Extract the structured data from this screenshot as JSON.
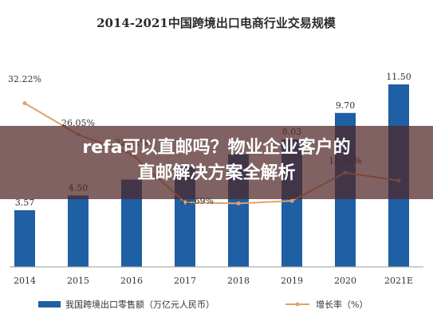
{
  "chart_data": {
    "type": "bar",
    "title": "2014-2021中国跨境出口电商行业交易规模",
    "categories": [
      "2014",
      "2015",
      "2016",
      "2017",
      "2018",
      "2019",
      "2020",
      "2021E"
    ],
    "series": [
      {
        "name": "我国跨境出口零售额（万亿元人民币）",
        "type": "bar",
        "values": [
          3.57,
          4.5,
          5.5,
          6.3,
          7.1,
          8.03,
          9.7,
          11.5
        ],
        "labels": [
          "3.57",
          "4.50",
          "",
          "",
          "",
          "8.03",
          "9.70",
          "11.50"
        ]
      },
      {
        "name": "增长率（%）",
        "type": "line",
        "values": [
          32.22,
          26.05,
          22.22,
          12.69,
          12.5,
          13.0,
          18.55,
          17.0
        ],
        "labels": [
          "32.22%",
          "26.05%",
          "22.22%",
          "12.69%",
          "",
          "",
          "18.55%",
          ""
        ]
      }
    ],
    "ylim_bar": [
      0,
      12.5
    ],
    "ylim_rate": [
      0,
      40
    ],
    "grid": false,
    "legend_position": "bottom",
    "colors": {
      "bar": "#1f5fa3",
      "line": "#e0a267"
    }
  },
  "overlay": {
    "title_line1": "refa可以直邮吗？物业企业客户的",
    "title_line2": "直邮解决方案全解析"
  }
}
